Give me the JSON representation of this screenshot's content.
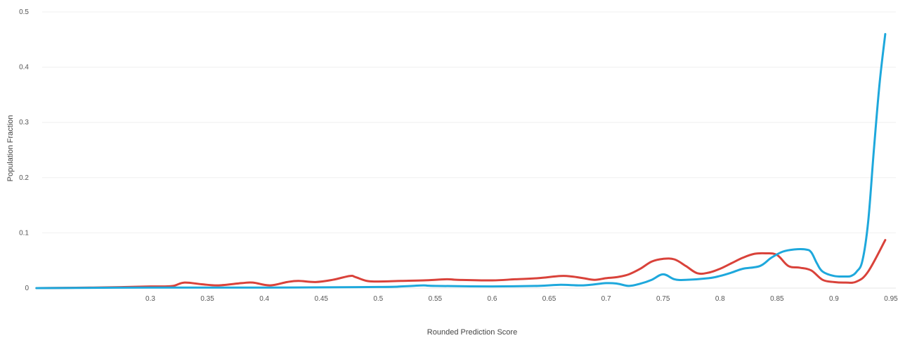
{
  "chart_data": {
    "type": "line",
    "title": "",
    "xlabel": "Rounded Prediction Score",
    "ylabel": "Population Fraction",
    "xlim": [
      0.2,
      0.95
    ],
    "ylim": [
      0,
      0.5
    ],
    "grid": true,
    "legend": "none",
    "x_ticks": [
      0.3,
      0.35,
      0.4,
      0.45,
      0.5,
      0.55,
      0.6,
      0.65,
      0.7,
      0.75,
      0.8,
      0.85,
      0.9,
      0.95
    ],
    "x_tick_labels": [
      "0.3",
      "0.35",
      "0.4",
      "0.45",
      "0.5",
      "0.55",
      "0.6",
      "0.65",
      "0.7",
      "0.75",
      "0.8",
      "0.85",
      "0.9",
      "0.95"
    ],
    "y_ticks": [
      0,
      0.1,
      0.2,
      0.3,
      0.4,
      0.5
    ],
    "y_tick_labels": [
      "0",
      "0.1",
      "0.2",
      "0.3",
      "0.4",
      "0.5"
    ],
    "series": [
      {
        "color": "#d9423a",
        "x": [
          0.2,
          0.25,
          0.28,
          0.3,
          0.31,
          0.32,
          0.33,
          0.345,
          0.36,
          0.38,
          0.39,
          0.405,
          0.42,
          0.43,
          0.445,
          0.46,
          0.475,
          0.48,
          0.49,
          0.5,
          0.52,
          0.54,
          0.56,
          0.57,
          0.6,
          0.62,
          0.64,
          0.66,
          0.67,
          0.68,
          0.69,
          0.7,
          0.71,
          0.72,
          0.73,
          0.74,
          0.75,
          0.76,
          0.77,
          0.78,
          0.79,
          0.8,
          0.81,
          0.82,
          0.83,
          0.84,
          0.85,
          0.86,
          0.87,
          0.88,
          0.89,
          0.9,
          0.91,
          0.92,
          0.93,
          0.945
        ],
        "y": [
          0,
          0.001,
          0.002,
          0.003,
          0.003,
          0.004,
          0.01,
          0.007,
          0.005,
          0.009,
          0.01,
          0.005,
          0.011,
          0.013,
          0.011,
          0.015,
          0.022,
          0.02,
          0.013,
          0.012,
          0.013,
          0.014,
          0.016,
          0.015,
          0.014,
          0.016,
          0.018,
          0.022,
          0.021,
          0.018,
          0.015,
          0.018,
          0.02,
          0.025,
          0.035,
          0.048,
          0.053,
          0.052,
          0.04,
          0.027,
          0.028,
          0.035,
          0.045,
          0.055,
          0.062,
          0.063,
          0.06,
          0.04,
          0.037,
          0.032,
          0.015,
          0.011,
          0.01,
          0.012,
          0.03,
          0.087
        ]
      },
      {
        "color": "#1ea8dc",
        "x": [
          0.2,
          0.3,
          0.4,
          0.5,
          0.52,
          0.53,
          0.54,
          0.55,
          0.6,
          0.64,
          0.66,
          0.68,
          0.7,
          0.71,
          0.72,
          0.73,
          0.74,
          0.75,
          0.76,
          0.77,
          0.79,
          0.8,
          0.81,
          0.82,
          0.835,
          0.845,
          0.855,
          0.865,
          0.875,
          0.88,
          0.885,
          0.89,
          0.9,
          0.91,
          0.915,
          0.92,
          0.925,
          0.93,
          0.935,
          0.94,
          0.945
        ],
        "y": [
          0,
          0.001,
          0.001,
          0.002,
          0.003,
          0.004,
          0.005,
          0.004,
          0.003,
          0.004,
          0.006,
          0.005,
          0.009,
          0.008,
          0.004,
          0.008,
          0.015,
          0.025,
          0.016,
          0.015,
          0.018,
          0.022,
          0.028,
          0.035,
          0.04,
          0.055,
          0.066,
          0.07,
          0.07,
          0.065,
          0.045,
          0.03,
          0.022,
          0.021,
          0.022,
          0.03,
          0.05,
          0.12,
          0.25,
          0.37,
          0.46
        ]
      }
    ]
  }
}
